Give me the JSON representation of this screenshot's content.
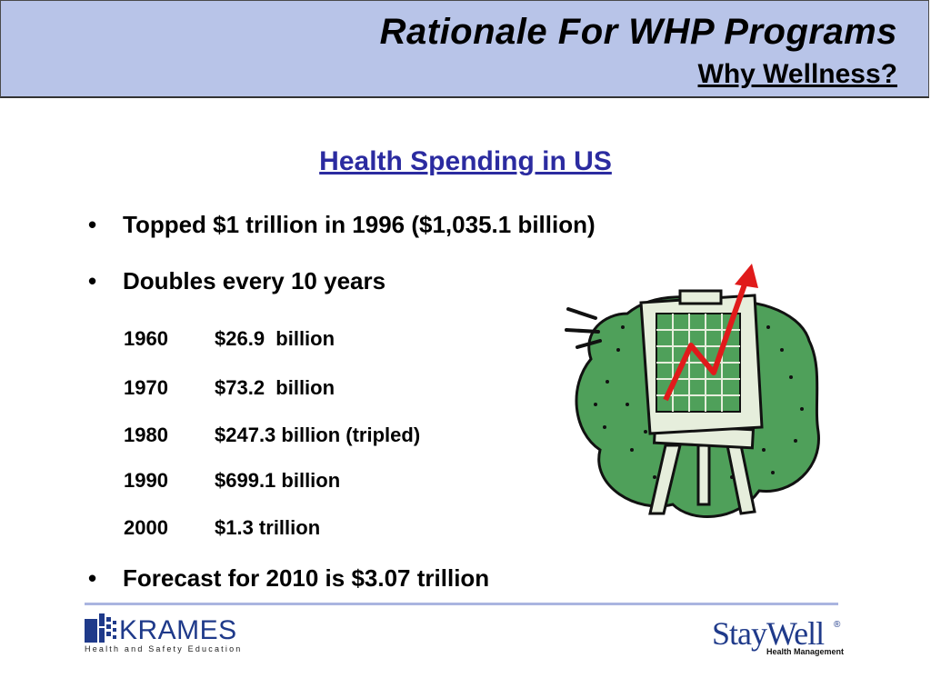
{
  "header": {
    "title": "Rationale For WHP Programs",
    "subtitle": "Why Wellness?",
    "background_color": "#b8c4e8"
  },
  "section": {
    "title": "Health Spending in US",
    "title_color": "#2b2ba0"
  },
  "bullets": [
    "Topped $1 trillion in 1996 ($1,035.1 billion)",
    "Doubles every 10 years",
    "Forecast for 2010 is $3.07 trillion"
  ],
  "bullet_symbol": "•",
  "spending_table": [
    {
      "year": "1960",
      "amount": "$26.9  billion"
    },
    {
      "year": "1970",
      "amount": "$73.2  billion"
    },
    {
      "year": "1980",
      "amount": "$247.3 billion (tripled)"
    },
    {
      "year": "1990",
      "amount": "$699.1 billion"
    },
    {
      "year": "2000",
      "amount": "$1.3 trillion"
    }
  ],
  "clipart": {
    "icon": "rising-chart-easel-icon"
  },
  "footer": {
    "left_logo": {
      "name": "KRAMES",
      "tagline": "Health and Safety Education",
      "icon": "krames-logo-icon"
    },
    "right_logo": {
      "name": "StayWell",
      "registered": "®",
      "tagline": "Health Management",
      "icon": "staywell-logo-icon"
    },
    "brand_color": "#1f3a8a"
  }
}
